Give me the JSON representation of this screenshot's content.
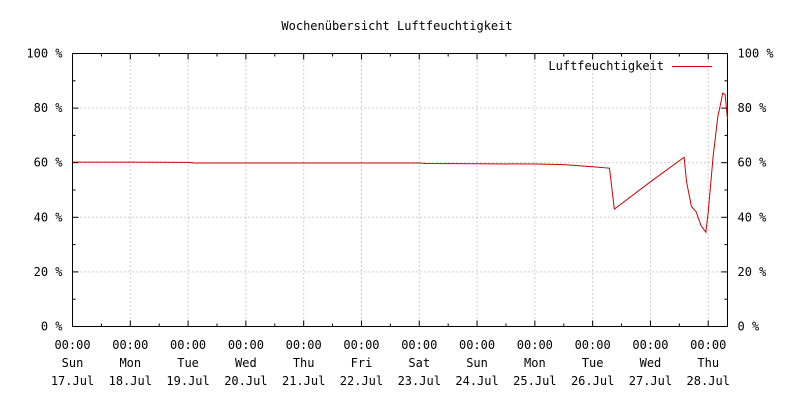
{
  "chart_data": {
    "type": "line",
    "title": "Wochenübersicht Luftfeuchtigkeit",
    "xlabel": "",
    "ylabel": "",
    "ylim": [
      0,
      100
    ],
    "y_ticks": [
      0,
      20,
      40,
      60,
      80,
      100
    ],
    "y_unit": "%",
    "x_range": [
      "2022-07-17 00:00",
      "2022-07-28 08:00"
    ],
    "x_ticks": [
      {
        "time": "00:00",
        "day": "Sun",
        "date": "17.Jul"
      },
      {
        "time": "00:00",
        "day": "Mon",
        "date": "18.Jul"
      },
      {
        "time": "00:00",
        "day": "Tue",
        "date": "19.Jul"
      },
      {
        "time": "00:00",
        "day": "Wed",
        "date": "20.Jul"
      },
      {
        "time": "00:00",
        "day": "Thu",
        "date": "21.Jul"
      },
      {
        "time": "00:00",
        "day": "Fri",
        "date": "22.Jul"
      },
      {
        "time": "00:00",
        "day": "Sat",
        "date": "23.Jul"
      },
      {
        "time": "00:00",
        "day": "Sun",
        "date": "24.Jul"
      },
      {
        "time": "00:00",
        "day": "Mon",
        "date": "25.Jul"
      },
      {
        "time": "00:00",
        "day": "Tue",
        "date": "26.Jul"
      },
      {
        "time": "00:00",
        "day": "Wed",
        "date": "27.Jul"
      },
      {
        "time": "00:00",
        "day": "Thu",
        "date": "28.Jul"
      }
    ],
    "grid": true,
    "legend_position": "top-right",
    "series": [
      {
        "name": "Luftfeuchtigkeit",
        "color": "#cc0000",
        "points": [
          [
            "2022-07-17 00:00",
            60.2
          ],
          [
            "2022-07-18 00:00",
            60.2
          ],
          [
            "2022-07-19 00:00",
            60.1
          ],
          [
            "2022-07-19 03:00",
            59.9
          ],
          [
            "2022-07-20 00:00",
            59.9
          ],
          [
            "2022-07-21 00:00",
            59.9
          ],
          [
            "2022-07-22 00:00",
            59.9
          ],
          [
            "2022-07-23 00:00",
            59.9
          ],
          [
            "2022-07-23 03:00",
            59.7
          ],
          [
            "2022-07-24 00:00",
            59.6
          ],
          [
            "2022-07-25 00:00",
            59.5
          ],
          [
            "2022-07-25 12:00",
            59.3
          ],
          [
            "2022-07-26 00:00",
            58.5
          ],
          [
            "2022-07-26 07:00",
            58.0
          ],
          [
            "2022-07-26 09:00",
            43.0
          ],
          [
            "2022-07-27 00:00",
            53.0
          ],
          [
            "2022-07-27 14:00",
            62.0
          ],
          [
            "2022-07-27 15:00",
            53.0
          ],
          [
            "2022-07-27 17:00",
            44.0
          ],
          [
            "2022-07-27 19:00",
            42.0
          ],
          [
            "2022-07-27 21:00",
            37.0
          ],
          [
            "2022-07-27 23:00",
            34.5
          ],
          [
            "2022-07-28 00:00",
            42.0
          ],
          [
            "2022-07-28 02:00",
            62.0
          ],
          [
            "2022-07-28 04:00",
            77.0
          ],
          [
            "2022-07-28 05:00",
            81.0
          ],
          [
            "2022-07-28 06:00",
            85.5
          ],
          [
            "2022-07-28 07:00",
            85.0
          ],
          [
            "2022-07-28 08:00",
            76.0
          ]
        ]
      }
    ]
  }
}
